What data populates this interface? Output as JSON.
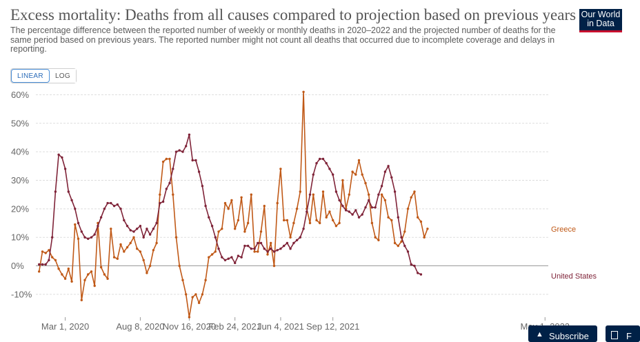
{
  "header": {
    "title": "Excess mortality: Deaths from all causes compared to projection based on previous years",
    "subtitle": "The percentage difference between the reported number of weekly or monthly deaths in 2020–2022 and the projected number of deaths for the same period based on previous years. The reported number might not count all deaths that occurred due to incomplete coverage and delays in reporting.",
    "logo_line1": "Our World",
    "logo_line2": "in Data"
  },
  "controls": {
    "linear_label": "LINEAR",
    "log_label": "LOG",
    "active": "linear"
  },
  "footer": {
    "subscribe_label": "Subscribe",
    "second_label": "F"
  },
  "colors": {
    "greece": "#c05917",
    "united_states": "#7f2338",
    "grid": "#dddddd",
    "zero": "#999999"
  },
  "chart_data": {
    "type": "line",
    "title": "Excess mortality: Deaths from all causes compared to projection based on previous years",
    "ylabel": "",
    "xlabel": "",
    "ylim": [
      -18,
      63
    ],
    "y_ticks": [
      -10,
      0,
      10,
      20,
      30,
      40,
      50,
      60
    ],
    "y_tick_labels": [
      "-10%",
      "0%",
      "10%",
      "20%",
      "30%",
      "40%",
      "50%",
      "60%"
    ],
    "x_range_weeks": [
      -1,
      156
    ],
    "x_ticks": [
      {
        "week": 8,
        "label": "Mar 1, 2020"
      },
      {
        "week": 31,
        "label": "Aug 8, 2020"
      },
      {
        "week": 46,
        "label": "Nov 16, 2020"
      },
      {
        "week": 60,
        "label": "Feb 24, 2021"
      },
      {
        "week": 74,
        "label": "Jun 4, 2021"
      },
      {
        "week": 90,
        "label": "Sep 12, 2021"
      },
      {
        "week": 155,
        "label": "May 1, 2022"
      }
    ],
    "series": [
      {
        "name": "Greece",
        "label": "Greece",
        "start_week": 0,
        "values": [
          -2,
          5,
          4.5,
          5.5,
          3,
          2,
          -1,
          -3,
          -4.5,
          -1,
          -5.5,
          14.5,
          9.5,
          -12,
          -5,
          -3,
          -2,
          -7,
          15,
          -0.5,
          -3,
          -4.5,
          13,
          3,
          2.5,
          7.5,
          5,
          6.5,
          8,
          10,
          6,
          5,
          2,
          -2.5,
          0,
          5.5,
          8,
          25,
          36.5,
          37.5,
          37.5,
          25,
          10,
          0,
          -5,
          -10,
          -18,
          -11,
          -10,
          -13,
          -10,
          -5,
          3,
          4,
          5,
          12,
          13,
          22,
          20,
          23,
          13,
          16,
          24,
          12,
          15,
          25,
          5,
          5,
          12,
          21,
          4,
          8,
          0,
          22,
          34,
          16,
          16,
          10,
          15,
          20,
          26,
          61,
          20,
          15,
          25,
          16,
          15,
          26,
          17,
          19,
          16,
          14,
          15,
          30,
          20,
          25,
          33,
          32,
          37,
          32,
          29,
          25,
          15,
          10,
          9,
          25,
          23,
          17,
          16,
          8,
          7,
          8.5,
          12,
          20,
          24,
          26,
          17,
          15.5,
          10,
          13
        ]
      },
      {
        "name": "United States",
        "label": "United States",
        "start_week": 0,
        "values": [
          0.5,
          0.5,
          0.5,
          2,
          10,
          26,
          39,
          38,
          34,
          26,
          23,
          20,
          15,
          12,
          10,
          9.5,
          10,
          11,
          14,
          17,
          20,
          22,
          22,
          21,
          21.5,
          20,
          16,
          14,
          12.5,
          12,
          13,
          14,
          10,
          13,
          11,
          13,
          15,
          22,
          22.5,
          27,
          29,
          34,
          40,
          40.5,
          40,
          42,
          46,
          37,
          37,
          33,
          28,
          21,
          17,
          14,
          10,
          6,
          3,
          2,
          2.5,
          3,
          1,
          3.5,
          3,
          7,
          7,
          6,
          6,
          8,
          8,
          6,
          5,
          6,
          5,
          5.5,
          6,
          7,
          8,
          6,
          8,
          9,
          10,
          13,
          19,
          25,
          32,
          36,
          37.5,
          37.5,
          36,
          34,
          32,
          26,
          23,
          21,
          19.5,
          19,
          18,
          19.5,
          17,
          18,
          20.5,
          23,
          20.5,
          20.5,
          25,
          28,
          33,
          35,
          31,
          26,
          17,
          10,
          7,
          5,
          0.5,
          0,
          -2.5,
          -3
        ]
      }
    ]
  }
}
